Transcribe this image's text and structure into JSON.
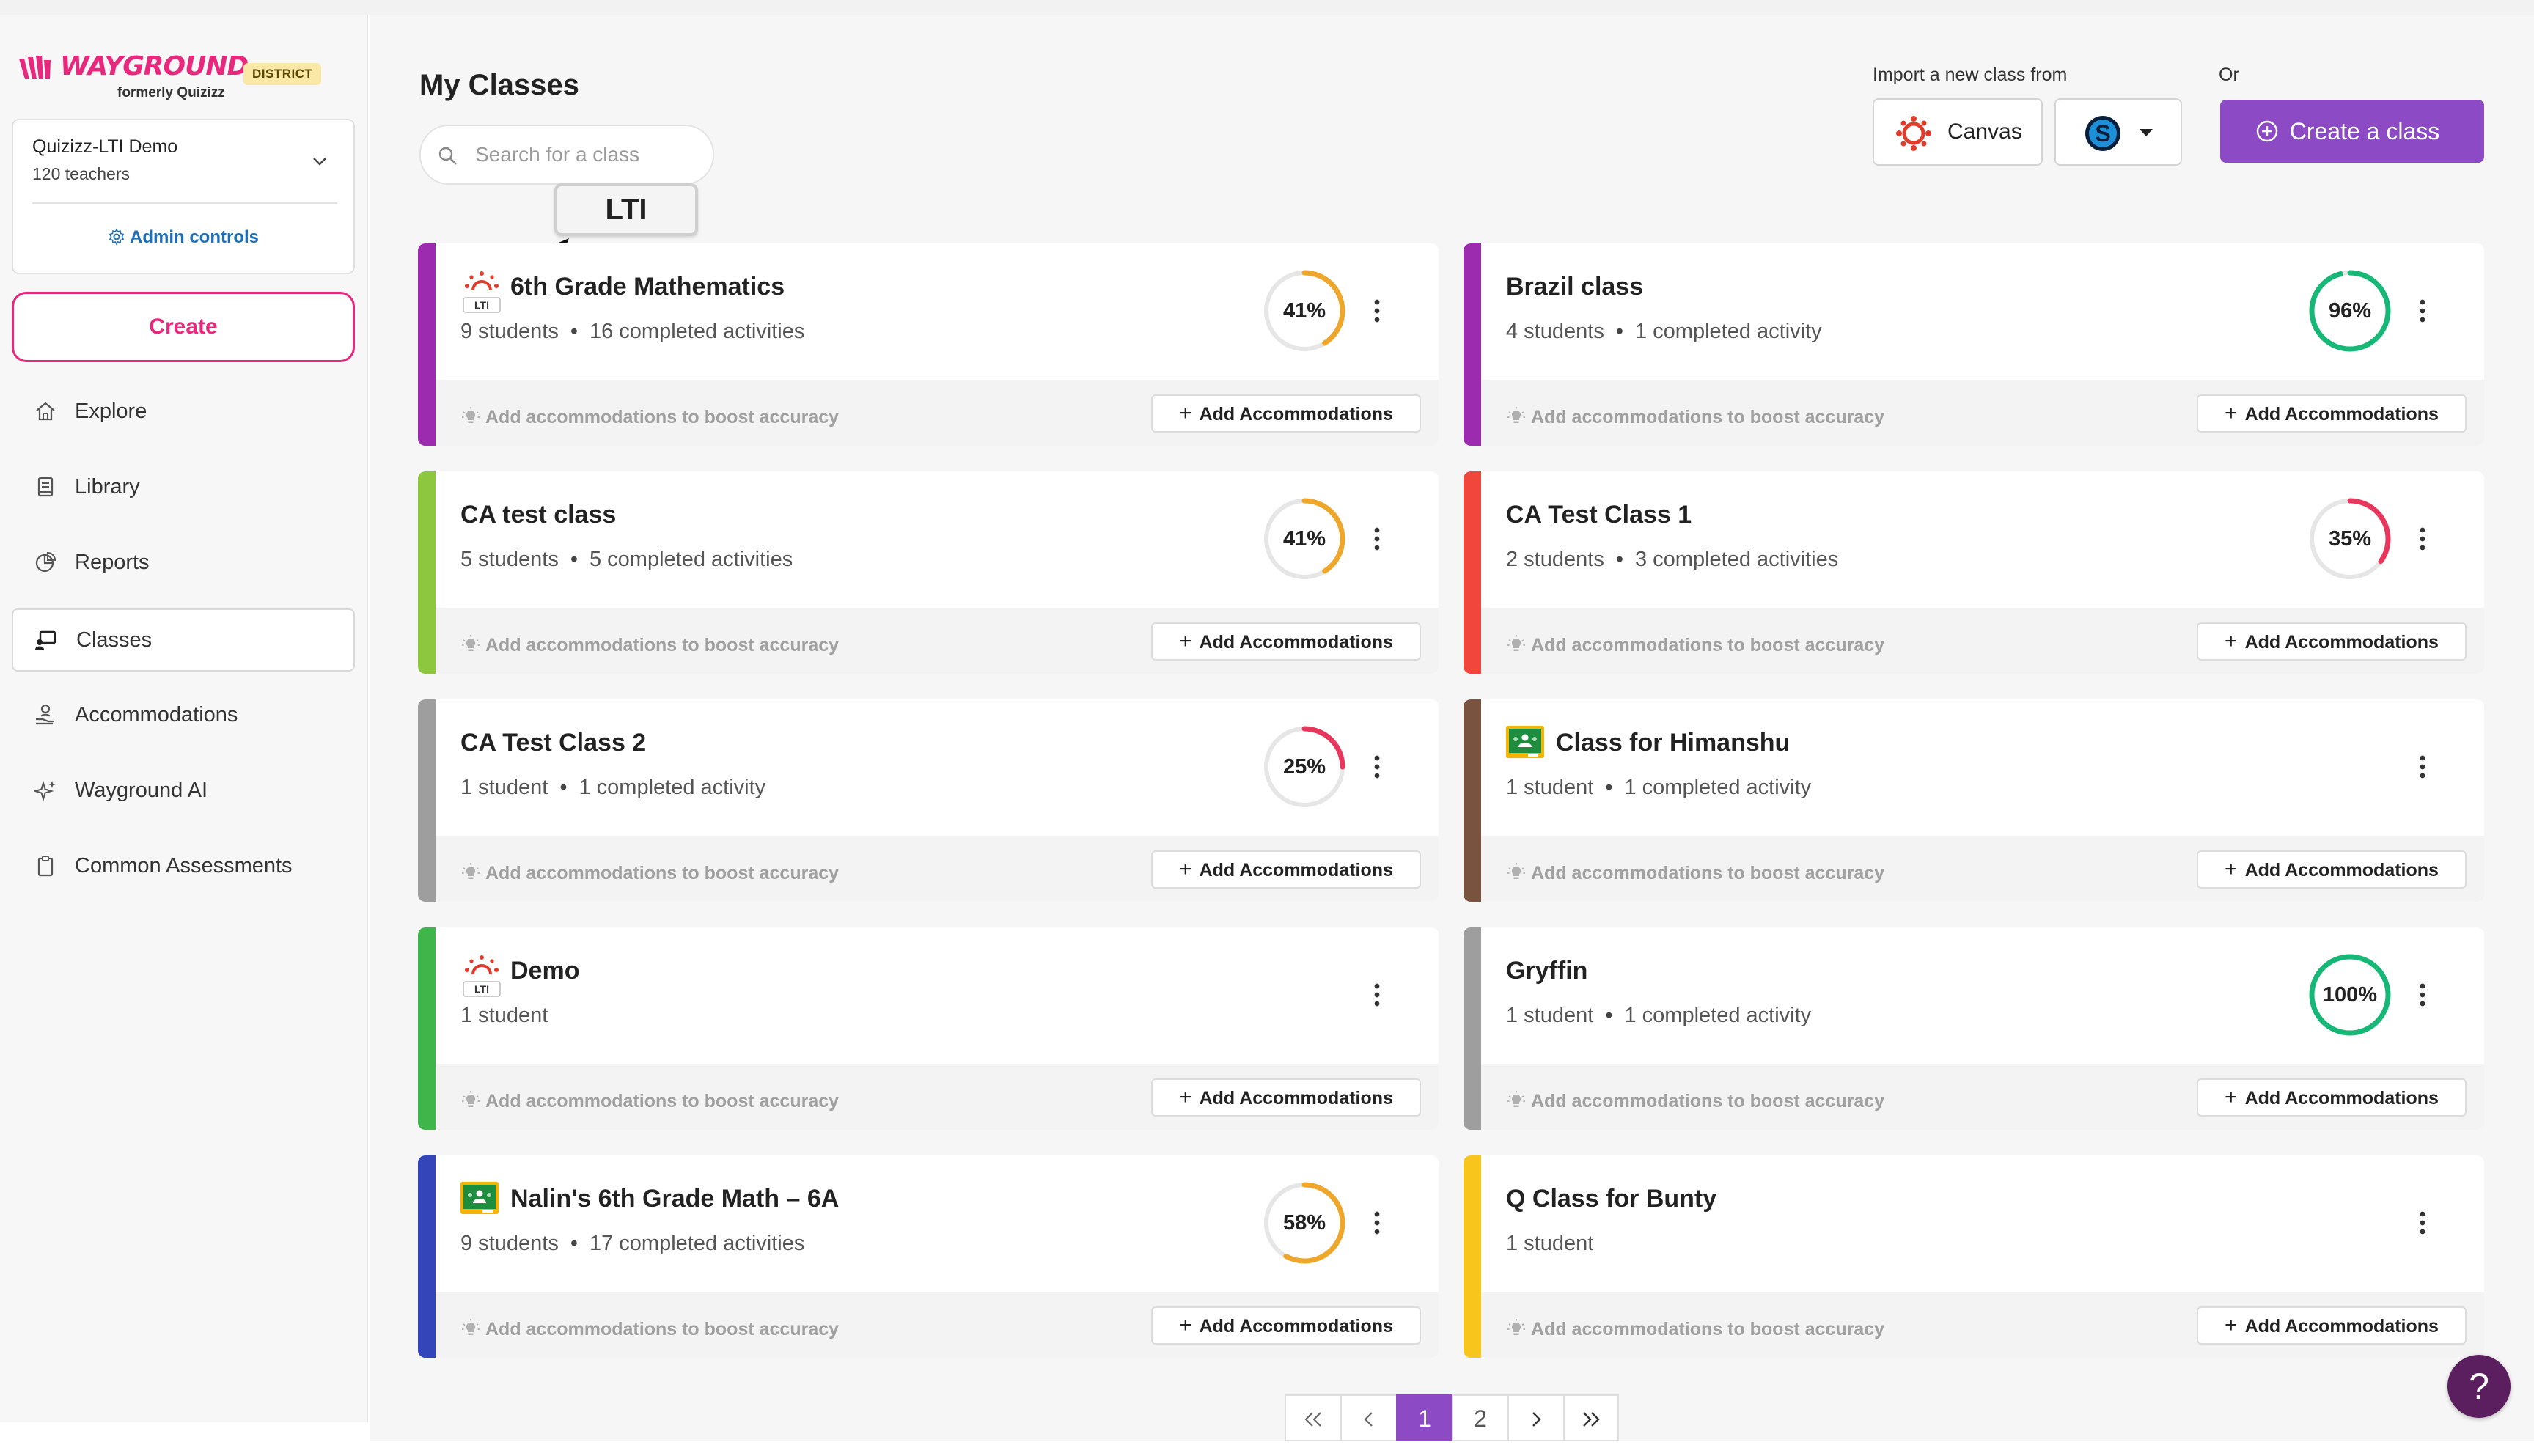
{
  "brand": {
    "logo_text": "WAYGROUND",
    "formerly": "formerly Quizizz",
    "badge": "DISTRICT",
    "accent": "#e8287d",
    "primary": "#8c4bc4"
  },
  "org": {
    "name": "Quizizz-LTI Demo",
    "teachers": "120 teachers",
    "admin_controls": "Admin controls"
  },
  "sidebar": {
    "create_label": "Create",
    "items": [
      {
        "label": "Explore",
        "icon": "home-icon"
      },
      {
        "label": "Library",
        "icon": "book-icon"
      },
      {
        "label": "Reports",
        "icon": "pie-chart-icon"
      },
      {
        "label": "Classes",
        "icon": "classes-icon",
        "active": true
      },
      {
        "label": "Accommodations",
        "icon": "hand-user-icon"
      },
      {
        "label": "Wayground AI",
        "icon": "sparkle-icon"
      },
      {
        "label": "Common Assessments",
        "icon": "clipboard-icon"
      }
    ]
  },
  "header": {
    "title": "My Classes",
    "search_placeholder": "Search for a class",
    "callout": "LTI",
    "import_label": "Import a new class from",
    "canvas_label": "Canvas",
    "or_label": "Or",
    "create_class_label": "Create a class"
  },
  "footer_hint": "Add accommodations to boost accuracy",
  "add_accommodations": "Add Accommodations",
  "classes": [
    {
      "name": "6th Grade Mathematics",
      "students": "9 students",
      "activities": "16 completed activities",
      "percent": 41,
      "percent_label": "41%",
      "stripe": "#9c2bb0",
      "source": "lti"
    },
    {
      "name": "Brazil class",
      "students": "4 students",
      "activities": "1 completed activity",
      "percent": 96,
      "percent_label": "96%",
      "stripe": "#9c2bb0",
      "source": ""
    },
    {
      "name": "CA test class",
      "students": "5 students",
      "activities": "5 completed activities",
      "percent": 41,
      "percent_label": "41%",
      "stripe": "#8dc63f",
      "source": ""
    },
    {
      "name": "CA Test Class 1",
      "students": "2 students",
      "activities": "3 completed activities",
      "percent": 35,
      "percent_label": "35%",
      "stripe": "#f0463c",
      "source": ""
    },
    {
      "name": "CA Test Class 2",
      "students": "1 student",
      "activities": "1 completed activity",
      "percent": 25,
      "percent_label": "25%",
      "stripe": "#9e9e9e",
      "source": ""
    },
    {
      "name": "Class for Himanshu",
      "students": "1 student",
      "activities": "1 completed activity",
      "percent": null,
      "percent_label": "",
      "stripe": "#7a5240",
      "source": "google-classroom"
    },
    {
      "name": "Demo",
      "students": "1 student",
      "activities": "",
      "percent": null,
      "percent_label": "",
      "stripe": "#3fb54a",
      "source": "lti"
    },
    {
      "name": "Gryffin",
      "students": "1 student",
      "activities": "1 completed activity",
      "percent": 100,
      "percent_label": "100%",
      "stripe": "#9e9e9e",
      "source": ""
    },
    {
      "name": "Nalin's 6th Grade Math – 6A",
      "students": "9 students",
      "activities": "17 completed activities",
      "percent": 58,
      "percent_label": "58%",
      "stripe": "#3345b8",
      "source": "google-classroom"
    },
    {
      "name": "Q Class for Bunty",
      "students": "1 student",
      "activities": "",
      "percent": null,
      "percent_label": "",
      "stripe": "#f7c51b",
      "source": ""
    }
  ],
  "pagination": {
    "pages": [
      "1",
      "2"
    ],
    "current": "1"
  },
  "help": "?"
}
